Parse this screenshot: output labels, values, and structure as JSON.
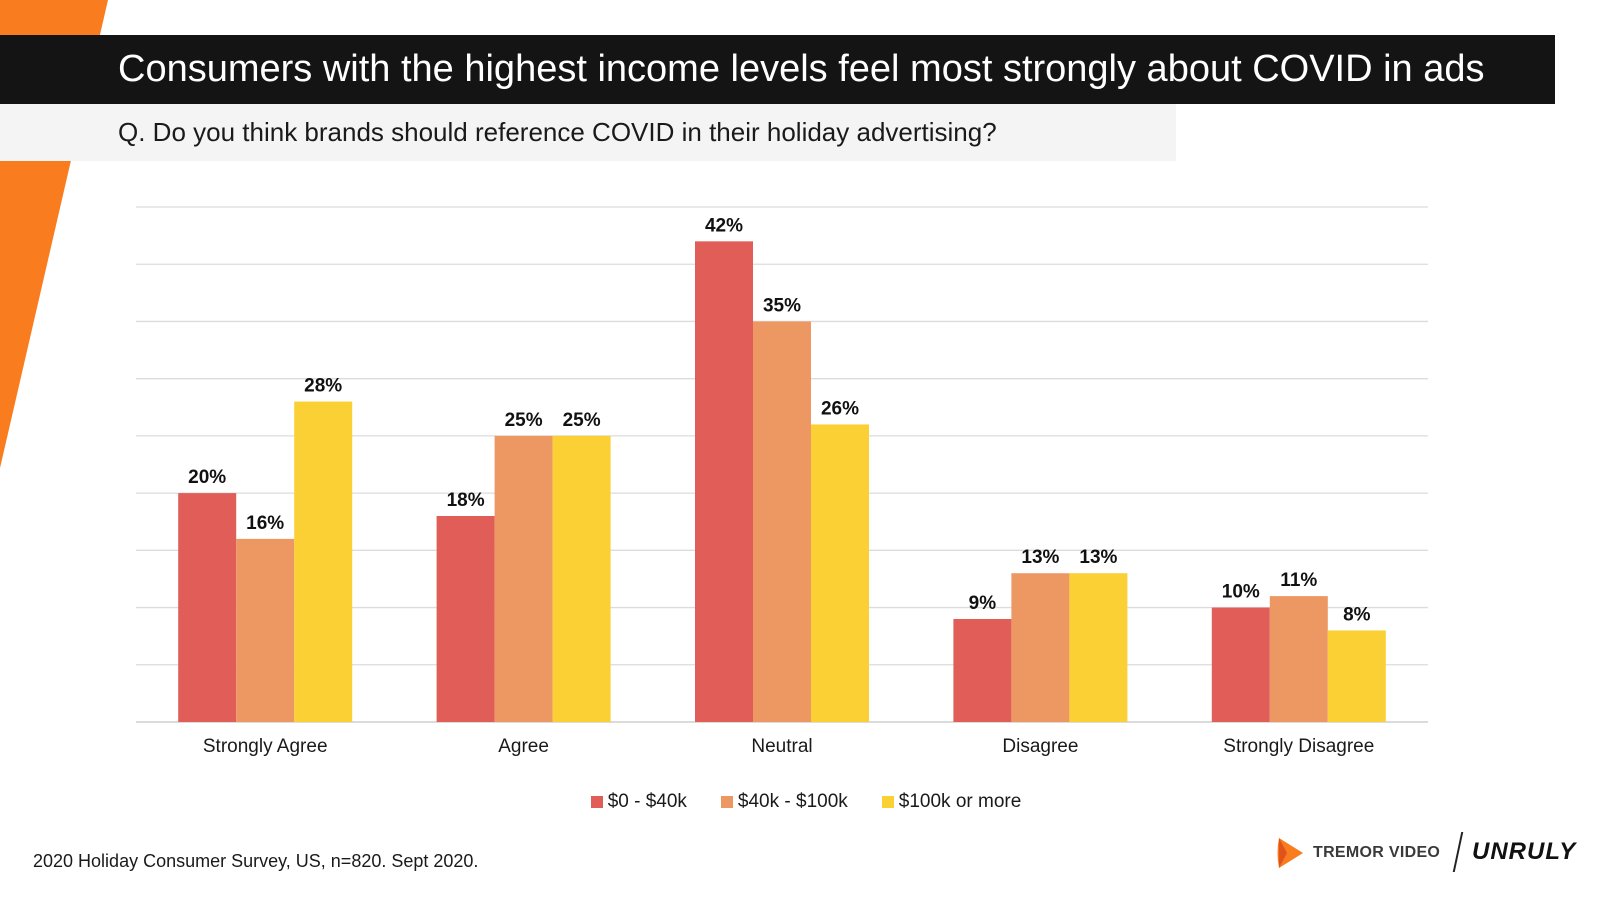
{
  "header": {
    "title": "Consumers with the highest income levels feel most strongly about COVID in ads",
    "question": "Q. Do you think brands should reference COVID in their holiday advertising?"
  },
  "footer": {
    "source": "2020 Holiday Consumer Survey, US, n=820. Sept 2020."
  },
  "logos": {
    "tremor": "TREMOR VIDEO",
    "unruly": "UNRULY"
  },
  "colors": {
    "accent_orange": "#f97c1f",
    "title_bar": "#141414",
    "series": [
      "#e05d58",
      "#ed9762",
      "#fbd035"
    ]
  },
  "chart_data": {
    "type": "bar",
    "categories": [
      "Strongly Agree",
      "Agree",
      "Neutral",
      "Disagree",
      "Strongly Disagree"
    ],
    "series": [
      {
        "name": "$0 - $40k",
        "color": "#e05d58",
        "values": [
          20,
          18,
          42,
          9,
          10
        ],
        "labels": [
          "20%",
          "18%",
          "42%",
          "9%",
          "10%"
        ]
      },
      {
        "name": "$40k - $100k",
        "color": "#ed9762",
        "values": [
          16,
          25,
          35,
          13,
          11
        ],
        "labels": [
          "16%",
          "25%",
          "35%",
          "13%",
          "11%"
        ]
      },
      {
        "name": "$100k or more",
        "color": "#fbd035",
        "values": [
          28,
          25,
          26,
          13,
          8
        ],
        "labels": [
          "28%",
          "25%",
          "26%",
          "13%",
          "8%"
        ]
      }
    ],
    "ylim": [
      0,
      45
    ],
    "grid": true,
    "legend": "bottom"
  }
}
